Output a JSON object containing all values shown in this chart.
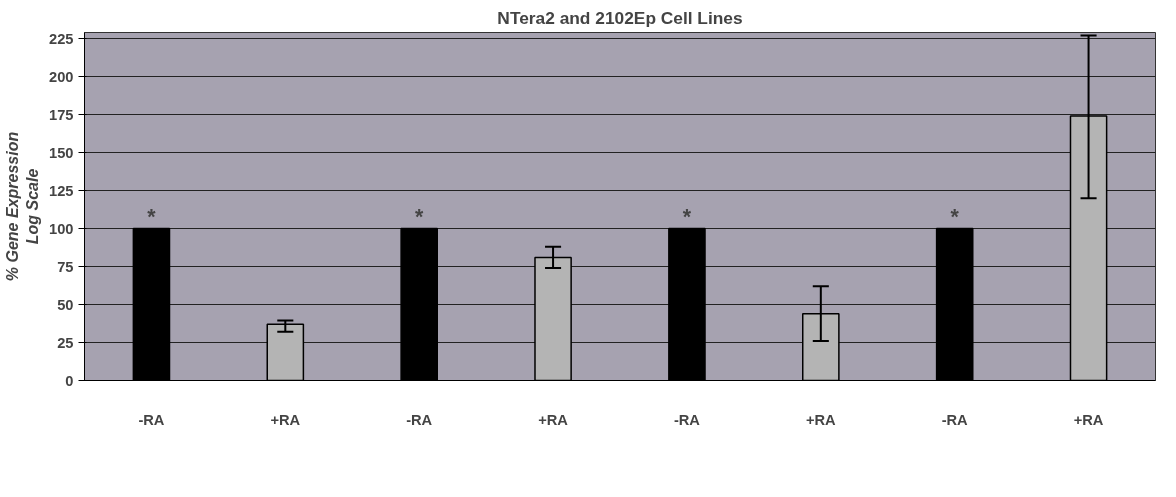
{
  "chart_data": {
    "type": "bar",
    "title": "NTera2 and 2102Ep Cell Lines",
    "ylabel": "% Gene Expression\nLog Scale",
    "categories": [
      "-RA",
      "+RA",
      "-RA",
      "+RA",
      "-RA",
      "+RA",
      "-RA",
      "+RA"
    ],
    "values": [
      100,
      37,
      100,
      81,
      100,
      44,
      100,
      174
    ],
    "colors": [
      "#000000",
      "#b4b4b4",
      "#000000",
      "#b4b4b4",
      "#000000",
      "#b4b4b4",
      "#000000",
      "#b4b4b4"
    ],
    "errors": [
      null,
      [
        32,
        39.5
      ],
      null,
      [
        74,
        88
      ],
      null,
      [
        26,
        62
      ],
      null,
      [
        120,
        227
      ]
    ],
    "value_labels": [
      "*",
      null,
      "*",
      null,
      "*",
      null,
      "*",
      null
    ],
    "ylim": [
      0,
      229
    ],
    "yticks": [
      0,
      25,
      50,
      75,
      100,
      125,
      150,
      175,
      200,
      225
    ],
    "grid": "y"
  }
}
